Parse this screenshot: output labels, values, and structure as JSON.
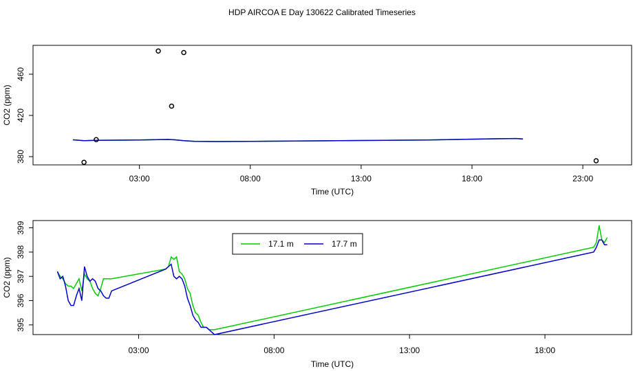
{
  "title": "HDP AIRCOA E  Day 130622  Calibrated Timeseries",
  "colors": {
    "series_17_1": "#00cc00",
    "series_17_7": "#0000cc",
    "axis": "#000000"
  },
  "chart_data": [
    {
      "type": "scatter",
      "xlabel": "Time (UTC)",
      "ylabel": "CO2 (ppm)",
      "xlim": [
        -1.8,
        25.2
      ],
      "ylim": [
        372,
        488
      ],
      "x_ticks": [
        3,
        8,
        13,
        18,
        23
      ],
      "x_tick_labels": [
        "03:00",
        "08:00",
        "13:00",
        "18:00",
        "23:00"
      ],
      "y_ticks": [
        380,
        420,
        460
      ],
      "y_tick_labels": [
        "380",
        "420",
        "460"
      ],
      "points": [
        {
          "x": 0.5,
          "y": 374.5
        },
        {
          "x": 1.05,
          "y": 396.5
        },
        {
          "x": 3.85,
          "y": 482.5
        },
        {
          "x": 4.45,
          "y": 429.0
        },
        {
          "x": 5.0,
          "y": 481.0
        },
        {
          "x": 23.6,
          "y": 376.0
        }
      ],
      "series": [
        {
          "x": [
            0.0,
            0.5,
            1.0,
            2.0,
            3.0,
            4.0,
            4.3,
            4.6,
            5.0,
            5.5,
            6.5,
            8.0,
            12.0,
            16.0,
            19.0,
            20.0,
            20.3
          ],
          "values": [
            396.3,
            395.5,
            395.9,
            396.0,
            396.2,
            396.6,
            396.7,
            396.3,
            395.5,
            394.8,
            394.7,
            394.8,
            395.5,
            396.2,
            397.3,
            397.6,
            397.2
          ]
        }
      ]
    },
    {
      "type": "line",
      "xlabel": "Time (UTC)",
      "ylabel": "CO2 (ppm)",
      "xlim": [
        -0.9,
        21.2
      ],
      "ylim": [
        394.6,
        399.3
      ],
      "x_ticks": [
        3,
        8,
        13,
        18
      ],
      "x_tick_labels": [
        "03:00",
        "08:00",
        "13:00",
        "18:00"
      ],
      "y_ticks": [
        395,
        396,
        397,
        398,
        399
      ],
      "y_tick_labels": [
        "395",
        "396",
        "397",
        "398",
        "399"
      ],
      "legend": {
        "position": "top-center",
        "entries": [
          "17.1 m",
          "17.7 m"
        ]
      },
      "series": [
        {
          "name": "17.1 m",
          "x": [
            0.0,
            0.1,
            0.2,
            0.3,
            0.4,
            0.5,
            0.6,
            0.7,
            0.8,
            0.9,
            1.0,
            1.1,
            1.2,
            1.3,
            1.4,
            1.5,
            1.6,
            1.7,
            1.8,
            1.9,
            2.0,
            4.0,
            4.1,
            4.2,
            4.3,
            4.4,
            4.5,
            4.6,
            4.7,
            4.8,
            4.9,
            5.0,
            5.1,
            5.2,
            5.3,
            5.4,
            5.5,
            5.6,
            5.7,
            5.8,
            19.8,
            19.9,
            20.0,
            20.1,
            20.2,
            20.3
          ],
          "values": [
            397.2,
            397.0,
            396.9,
            396.7,
            396.6,
            396.6,
            396.5,
            396.7,
            396.9,
            396.4,
            397.1,
            396.9,
            396.8,
            396.5,
            396.3,
            396.2,
            396.5,
            396.9,
            396.9,
            396.9,
            396.9,
            397.3,
            397.4,
            397.8,
            397.7,
            397.8,
            397.2,
            397.1,
            396.9,
            396.5,
            396.3,
            395.8,
            395.5,
            395.4,
            395.1,
            394.9,
            394.9,
            394.8,
            394.8,
            394.8,
            398.2,
            398.4,
            399.1,
            398.5,
            398.4,
            398.6
          ]
        },
        {
          "name": "17.7 m",
          "x": [
            0.0,
            0.1,
            0.2,
            0.3,
            0.4,
            0.5,
            0.6,
            0.7,
            0.8,
            0.9,
            1.0,
            1.1,
            1.2,
            1.3,
            1.4,
            1.5,
            1.6,
            1.7,
            1.8,
            1.9,
            2.0,
            4.0,
            4.1,
            4.2,
            4.3,
            4.4,
            4.5,
            4.6,
            4.7,
            4.8,
            4.9,
            5.0,
            5.1,
            5.2,
            5.3,
            5.4,
            5.5,
            5.6,
            5.7,
            5.8,
            19.8,
            19.9,
            20.0,
            20.1,
            20.2,
            20.3
          ],
          "values": [
            397.2,
            396.9,
            397.0,
            396.6,
            396.0,
            395.8,
            395.8,
            396.2,
            396.5,
            396.0,
            397.4,
            397.0,
            396.8,
            396.9,
            396.8,
            396.5,
            396.4,
            396.2,
            396.1,
            396.1,
            396.4,
            397.3,
            397.4,
            397.5,
            397.0,
            396.9,
            397.0,
            396.9,
            396.6,
            396.1,
            395.8,
            395.4,
            395.2,
            395.1,
            394.9,
            394.9,
            394.9,
            394.8,
            394.7,
            394.6,
            398.0,
            398.2,
            398.5,
            398.5,
            398.3,
            398.3
          ]
        }
      ]
    }
  ]
}
